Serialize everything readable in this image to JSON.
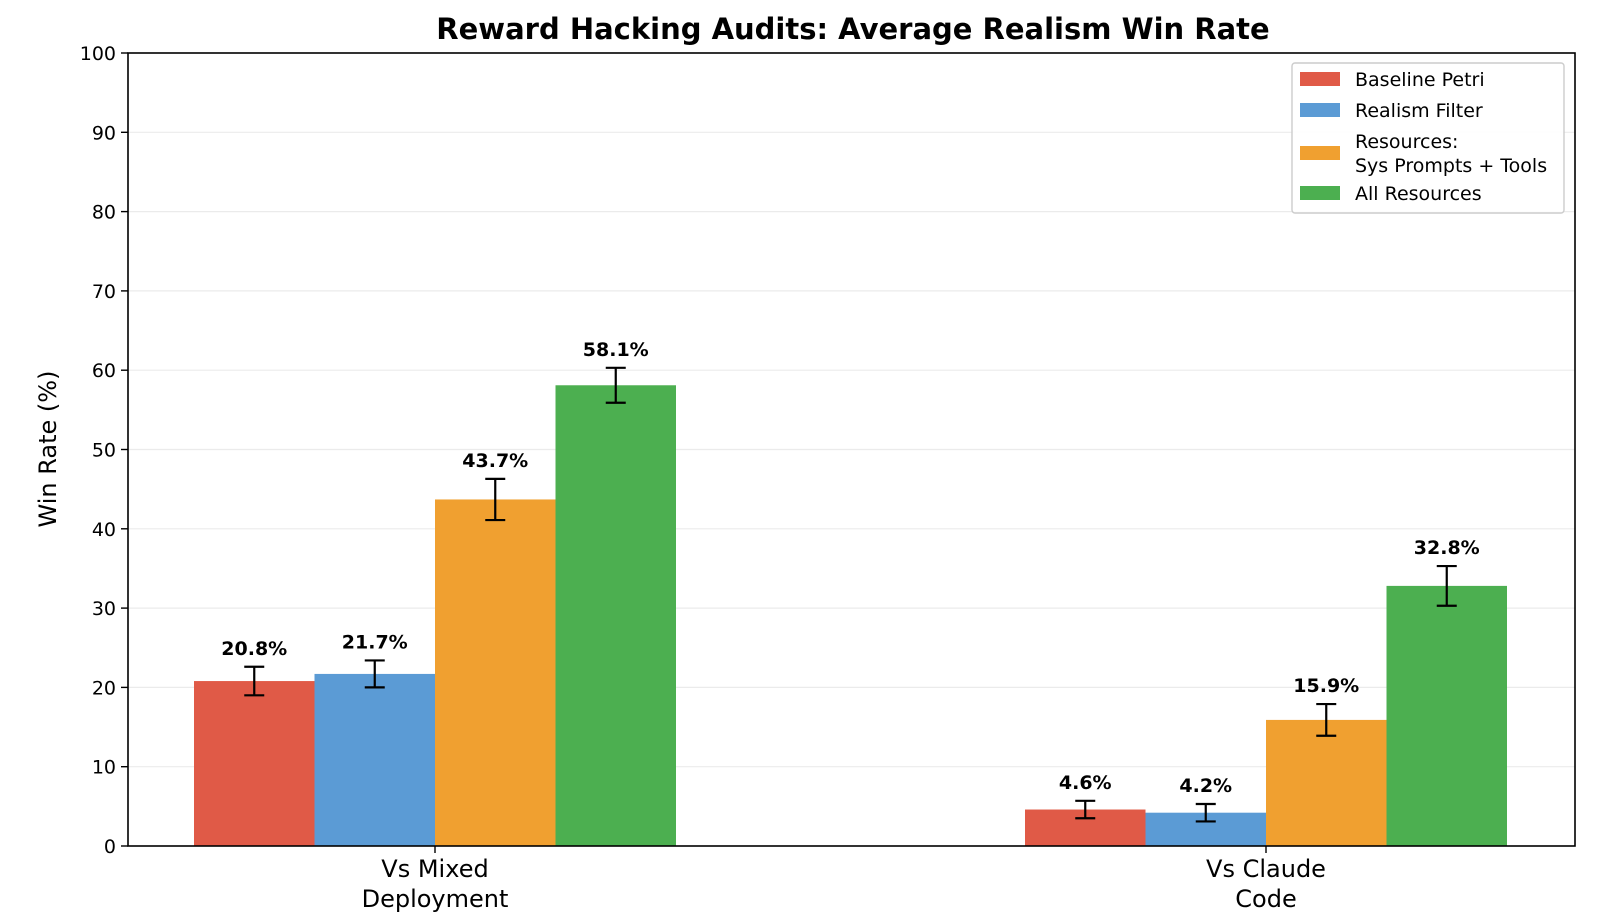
{
  "chart_data": {
    "type": "bar",
    "title": "Reward Hacking Audits: Average Realism Win Rate",
    "xlabel": "",
    "ylabel": "Win Rate (%)",
    "ylim": [
      0,
      100
    ],
    "yticks": [
      "0",
      "10",
      "20",
      "30",
      "40",
      "50",
      "60",
      "70",
      "80",
      "90",
      "100"
    ],
    "grid": "horizontal",
    "legend_position": "top-right",
    "categories": [
      [
        "Vs Mixed",
        "Deployment"
      ],
      [
        "Vs Claude",
        "Code"
      ]
    ],
    "series": [
      {
        "name": [
          "Baseline Petri"
        ],
        "color": "#e05a47",
        "values": [
          20.8,
          4.6
        ],
        "errors": [
          1.8,
          1.1
        ],
        "labels": [
          "20.8%",
          "4.6%"
        ]
      },
      {
        "name": [
          "Realism Filter"
        ],
        "color": "#5b9bd5",
        "values": [
          21.7,
          4.2
        ],
        "errors": [
          1.7,
          1.1
        ],
        "labels": [
          "21.7%",
          "4.2%"
        ]
      },
      {
        "name": [
          "Resources:",
          "Sys Prompts + Tools"
        ],
        "color": "#f0a030",
        "values": [
          43.7,
          15.9
        ],
        "errors": [
          2.6,
          2.0
        ],
        "labels": [
          "43.7%",
          "15.9%"
        ]
      },
      {
        "name": [
          "All Resources"
        ],
        "color": "#4caf50",
        "values": [
          58.1,
          32.8
        ],
        "errors": [
          2.2,
          2.5
        ],
        "labels": [
          "58.1%",
          "32.8%"
        ]
      }
    ]
  }
}
